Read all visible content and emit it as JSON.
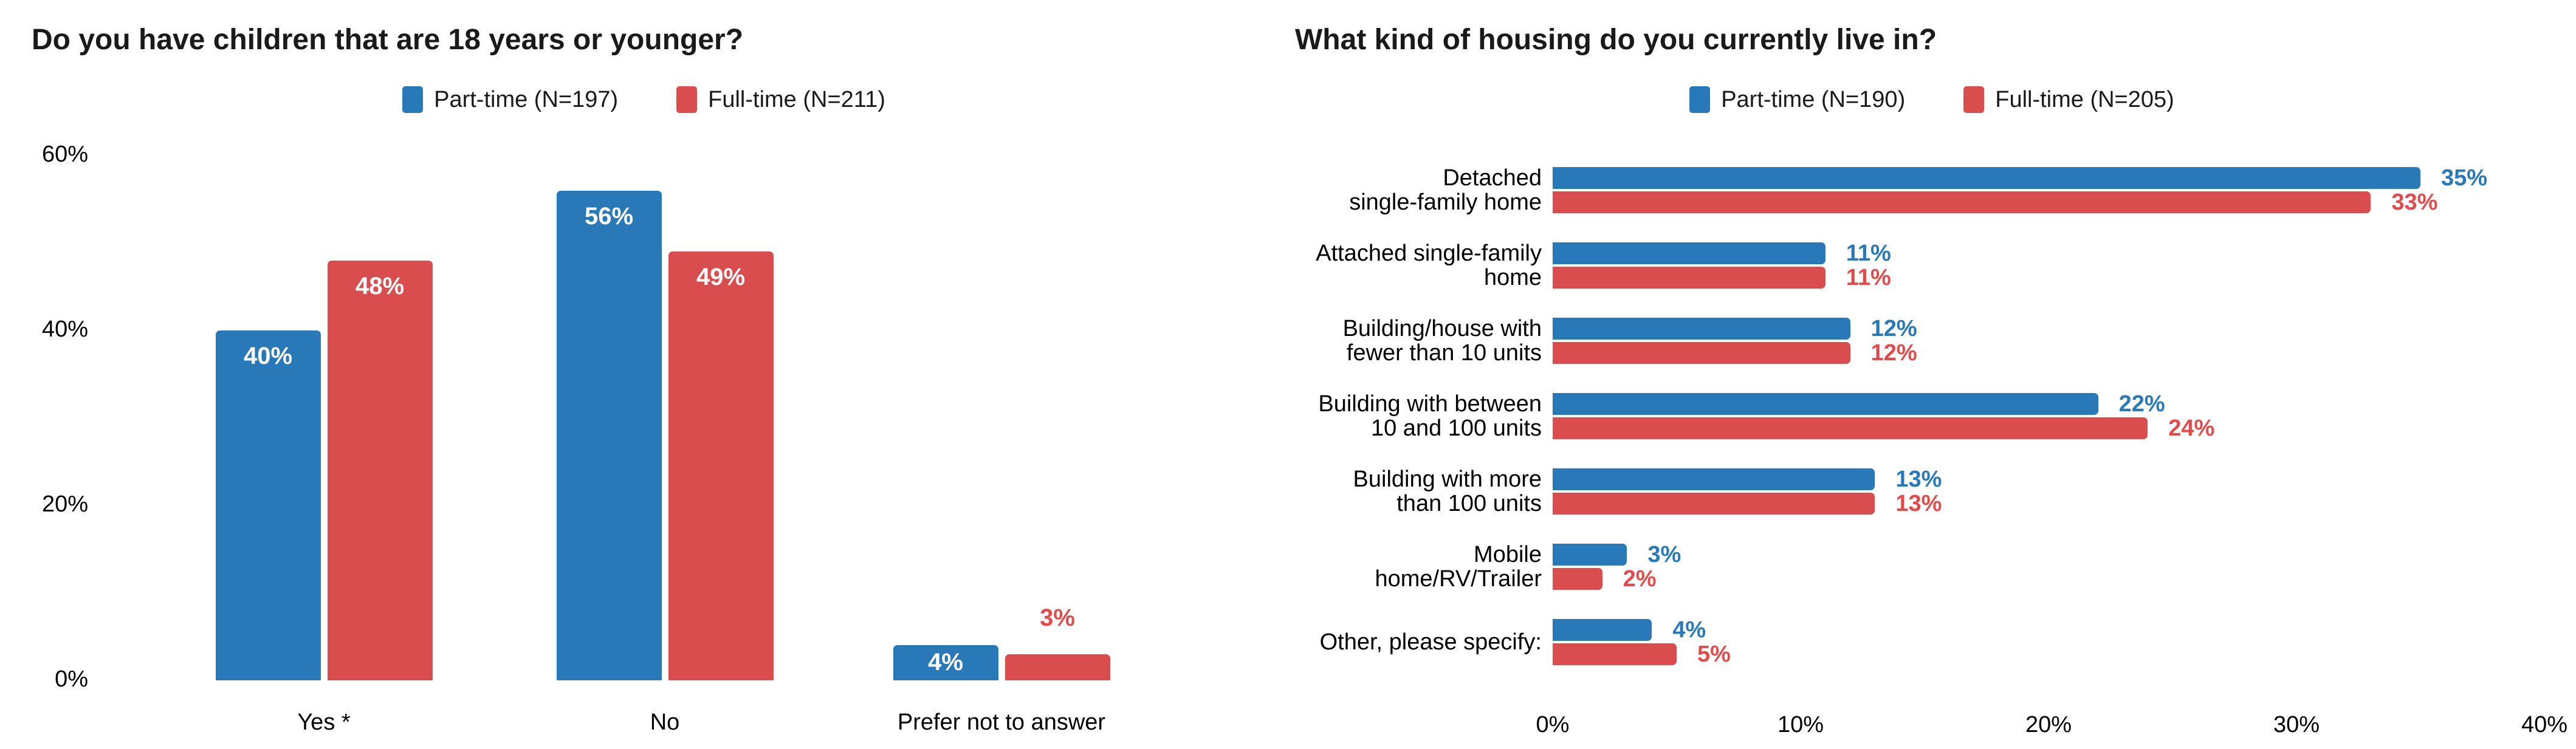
{
  "chart_data": [
    {
      "type": "bar",
      "orientation": "vertical",
      "title": "Do you have children that are 18 years or younger?",
      "categories": [
        "Yes *",
        "No",
        "Prefer not to answer"
      ],
      "series": [
        {
          "name": "Part-time (N=197)",
          "color": "#2979B9",
          "label_color": "#2979B9",
          "values": [
            40,
            56,
            4
          ]
        },
        {
          "name": "Full-time (N=211)",
          "color": "#D94D4E",
          "label_color": "#E04C4C",
          "values": [
            48,
            49,
            3
          ]
        }
      ],
      "value_suffix": "%",
      "yticks": [
        0,
        20,
        40,
        60
      ],
      "ylim": [
        0,
        60
      ],
      "grid": false,
      "legend_position": "top",
      "data_label_style": "white-inside-or-colored-outside"
    },
    {
      "type": "bar",
      "orientation": "horizontal",
      "title": "What kind of housing do you currently live in?",
      "categories": [
        [
          "Detached",
          "single-family home"
        ],
        [
          "Attached single-family",
          "home"
        ],
        [
          "Building/house with",
          "fewer than 10 units"
        ],
        [
          "Building with between",
          "10 and 100 units"
        ],
        [
          "Building with more",
          "than 100 units"
        ],
        [
          "Mobile",
          "home/RV/Trailer"
        ],
        [
          "Other, please specify:"
        ]
      ],
      "series": [
        {
          "name": "Part-time (N=190)",
          "color": "#2979B9",
          "label_color": "#2979B9",
          "values": [
            35,
            11,
            12,
            22,
            13,
            3,
            4
          ]
        },
        {
          "name": "Full-time (N=205)",
          "color": "#D94D4E",
          "label_color": "#E04C4C",
          "values": [
            33,
            11,
            12,
            24,
            13,
            2,
            5
          ]
        }
      ],
      "value_suffix": "%",
      "xticks": [
        0,
        10,
        20,
        30,
        40
      ],
      "xlim": [
        0,
        40
      ],
      "grid": false,
      "legend_position": "top",
      "data_label_style": "colored-right-of-bar"
    }
  ]
}
